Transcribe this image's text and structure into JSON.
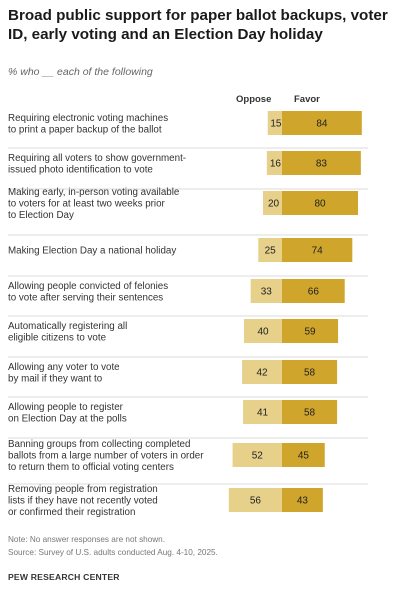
{
  "title": "Broad public support for paper ballot backups, voter ID, early voting and an Election Day holiday",
  "subtitle": "% who __ each of the following",
  "colors": {
    "oppose": "#e6d08a",
    "favor": "#cfa52c",
    "divider": "#cfcfcf"
  },
  "chart_data": {
    "type": "bar",
    "orientation": "horizontal-diverging",
    "series": [
      {
        "name": "Oppose",
        "values": [
          15,
          16,
          20,
          25,
          33,
          40,
          42,
          41,
          52,
          56
        ]
      },
      {
        "name": "Favor",
        "values": [
          84,
          83,
          80,
          74,
          66,
          59,
          58,
          58,
          45,
          43
        ]
      }
    ],
    "categories": [
      [
        "Requiring electronic voting machines",
        "to print a paper backup of the ballot"
      ],
      [
        "Requiring all voters to show government-",
        "issued photo identification to vote"
      ],
      [
        "Making early, in-person voting available",
        "to voters for at least two weeks prior",
        "to Election Day"
      ],
      [
        "Making Election Day a national holiday"
      ],
      [
        "Allowing people convicted of felonies",
        "to vote after serving their sentences"
      ],
      [
        "Automatically registering all",
        "eligible citizens to vote"
      ],
      [
        "Allowing any voter to vote",
        "by mail if they want to"
      ],
      [
        "Allowing people to register",
        "on Election Day at the polls"
      ],
      [
        "Banning groups from collecting completed",
        "ballots from a large number of voters in order",
        "to return them to official voting centers"
      ],
      [
        "Removing people from registration",
        "lists if they have not recently voted",
        "or confirmed their registration"
      ]
    ],
    "legend": {
      "oppose_label": "Oppose",
      "favor_label": "Favor"
    }
  },
  "notes": {
    "note": "Note: No answer responses are not shown.",
    "source": "Source: Survey of U.S. adults conducted Aug. 4-10, 2025."
  },
  "brand": "PEW RESEARCH CENTER"
}
